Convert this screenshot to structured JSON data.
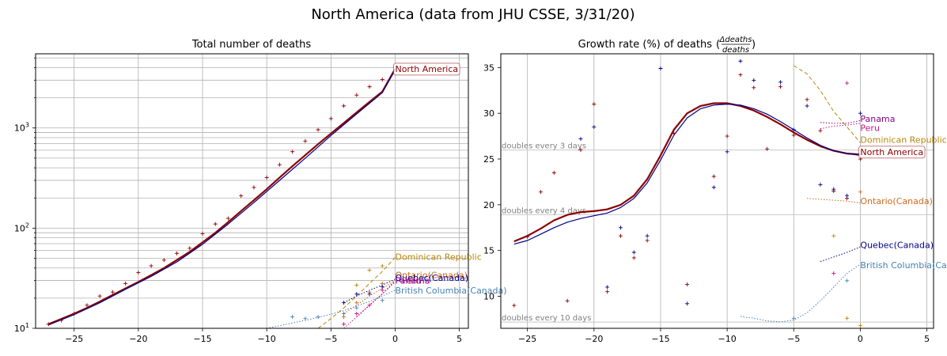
{
  "figure": {
    "suptitle": "North America (data from JHU CSSE, 3/31/20)"
  },
  "chart_data": [
    {
      "type": "line",
      "title": "Total number of deaths",
      "yscale": "log",
      "xlim": [
        -28,
        5.7
      ],
      "ylim": [
        10,
        5500
      ],
      "x_ticks": [
        -25,
        -20,
        -15,
        -10,
        -5,
        0,
        5
      ],
      "y_tick_labels": [
        {
          "value": 10,
          "label": "10^1"
        },
        {
          "value": 100,
          "label": "10^2"
        },
        {
          "value": 1000,
          "label": "10^3"
        }
      ],
      "series": [
        {
          "name": "North America",
          "color": "#8b0000",
          "style": "solid",
          "width": 2.2,
          "x": [
            -27,
            -26,
            -25,
            -24,
            -23,
            -22,
            -21,
            -20,
            -19,
            -18,
            -17,
            -16,
            -15,
            -14,
            -13,
            -12,
            -11,
            -10,
            -9,
            -8,
            -7,
            -6,
            -5,
            -4,
            -3,
            -2,
            -1,
            0
          ],
          "y": [
            11,
            12.4,
            14,
            16,
            18.5,
            21.5,
            25,
            29,
            34,
            40,
            48,
            58,
            72,
            90,
            115,
            148,
            190,
            245,
            320,
            415,
            535,
            690,
            880,
            1120,
            1430,
            1820,
            2300,
            3900
          ]
        },
        {
          "name": "North America fit",
          "color": "#00008b",
          "style": "solid",
          "width": 1.2,
          "x": [
            -27,
            -25,
            -23,
            -21,
            -19,
            -17,
            -15,
            -13,
            -11,
            -9,
            -7,
            -5,
            -3,
            -1,
            0
          ],
          "y": [
            10.8,
            13.7,
            18,
            24.5,
            33,
            46,
            69,
            110,
            180,
            300,
            500,
            840,
            1380,
            2250,
            3800
          ]
        },
        {
          "name": "Dominican Republic",
          "color": "#b8860b",
          "style": "dashed",
          "width": 1,
          "x": [
            -6,
            -5,
            -4,
            -3,
            -2,
            -1,
            0
          ],
          "y": [
            10,
            12.5,
            16,
            21,
            28,
            37,
            51
          ]
        },
        {
          "name": "Ontario(Canada)",
          "color": "#d2691e",
          "style": "dotted",
          "width": 1,
          "x": [
            -4,
            -3,
            -2,
            -1,
            0
          ],
          "y": [
            14,
            17,
            21,
            25,
            30
          ]
        },
        {
          "name": "Quebec(Canada)",
          "color": "#00008b",
          "style": "dotted",
          "width": 1,
          "x": [
            -4,
            -3,
            -2,
            -1,
            0
          ],
          "y": [
            18,
            21,
            24,
            27,
            31
          ]
        },
        {
          "name": "Panama",
          "color": "#8b008b",
          "style": "dotted",
          "width": 1,
          "x": [
            -3,
            -2,
            -1,
            0
          ],
          "y": [
            13,
            17,
            22,
            30
          ]
        },
        {
          "name": "Peru",
          "color": "#c71585",
          "style": "dotted",
          "width": 1,
          "x": [
            -4,
            -3,
            -2,
            -1,
            0
          ],
          "y": [
            10,
            13,
            17,
            22,
            29
          ]
        },
        {
          "name": "British Columbia(Canada)",
          "color": "#4682b4",
          "style": "dotted",
          "width": 1,
          "x": [
            -10,
            -8,
            -6,
            -4,
            -2,
            0
          ],
          "y": [
            10,
            11.3,
            12.8,
            15,
            18.5,
            24
          ]
        }
      ],
      "markers": [
        {
          "name": "North America",
          "color": "#8b0000",
          "x": [
            -27,
            -26,
            -25,
            -24,
            -23,
            -22,
            -21,
            -20,
            -19,
            -18,
            -17,
            -16,
            -15,
            -14,
            -13,
            -12,
            -11,
            -10,
            -9,
            -8,
            -7,
            -6,
            -5,
            -4,
            -3,
            -2,
            -1
          ],
          "y": [
            11,
            12,
            14,
            17,
            21,
            23,
            28,
            36,
            42,
            48,
            56,
            63,
            88,
            110,
            125,
            210,
            255,
            320,
            430,
            580,
            740,
            960,
            1240,
            1660,
            2130,
            2580,
            3040
          ]
        },
        {
          "name": "Dominican Republic",
          "color": "#b8860b",
          "x": [
            -3,
            -2,
            -1
          ],
          "y": [
            27,
            38,
            42
          ]
        },
        {
          "name": "Ontario(Canada)",
          "color": "#d2691e",
          "x": [
            -4,
            -3,
            -2,
            -1
          ],
          "y": [
            13,
            18,
            23,
            28
          ]
        },
        {
          "name": "Quebec(Canada)",
          "color": "#00008b",
          "x": [
            -4,
            -3,
            -2,
            -1
          ],
          "y": [
            18,
            22,
            22,
            26
          ]
        },
        {
          "name": "Peru",
          "color": "#c71585",
          "x": [
            -4,
            -3,
            -2,
            -1
          ],
          "y": [
            11,
            14,
            17,
            24
          ]
        },
        {
          "name": "British Columbia(Canada)",
          "color": "#4682b4",
          "x": [
            -8,
            -7,
            -6,
            -4,
            -3,
            -1
          ],
          "y": [
            13,
            12.5,
            13,
            14,
            16,
            19
          ]
        }
      ],
      "annotations": [
        {
          "text": "North America",
          "x": 0,
          "y": 3900,
          "color": "#8b0000",
          "boxed": true
        },
        {
          "text": "Dominican Republic",
          "x": 0,
          "y": 52,
          "color": "#b8860b"
        },
        {
          "text": "Ontario(Canada)",
          "x": 0,
          "y": 34,
          "color": "#d2691e"
        },
        {
          "text": "Quebec(Canada)",
          "x": 0,
          "y": 32,
          "color": "#00008b"
        },
        {
          "text": "Panama",
          "x": 0,
          "y": 30,
          "color": "#8b008b"
        },
        {
          "text": "Peru",
          "x": 0.5,
          "y": 30,
          "color": "#c71585"
        },
        {
          "text": "British Columbia(Canada)",
          "x": 0,
          "y": 24,
          "color": "#4682b4"
        }
      ]
    },
    {
      "type": "line",
      "title": "Growth rate (%) of deaths",
      "title_fraction": {
        "numerator": "Δdeaths",
        "denominator": "deaths"
      },
      "xlim": [
        -27,
        5.5
      ],
      "ylim": [
        6.5,
        36.5
      ],
      "x_ticks": [
        -25,
        -20,
        -15,
        -10,
        -5,
        0,
        5
      ],
      "y_ticks": [
        10,
        15,
        20,
        25,
        30,
        35
      ],
      "reference_lines": [
        {
          "label": "doubles every 3 days",
          "y": 25.99
        },
        {
          "label": "doubles every 4 days",
          "y": 18.92
        },
        {
          "label": "doubles every 10 days",
          "y": 7.18
        }
      ],
      "series": [
        {
          "name": "North America",
          "color": "#8b0000",
          "style": "solid",
          "width": 2.2,
          "x": [
            -26,
            -25,
            -24,
            -23,
            -22,
            -21,
            -20,
            -19,
            -18,
            -17,
            -16,
            -15,
            -14,
            -13,
            -12,
            -11,
            -10,
            -9,
            -8,
            -7,
            -6,
            -5,
            -4,
            -3,
            -2,
            -1,
            0
          ],
          "y": [
            16,
            16.6,
            17.4,
            18.3,
            18.9,
            19.2,
            19.3,
            19.5,
            20,
            21,
            22.8,
            25.4,
            28.2,
            30,
            30.8,
            31.1,
            31.1,
            30.8,
            30.3,
            29.6,
            28.8,
            27.9,
            27.1,
            26.4,
            25.9,
            25.6,
            25.5
          ]
        },
        {
          "name": "North America fit",
          "color": "#00008b",
          "style": "solid",
          "width": 1.2,
          "x": [
            -26,
            -25,
            -24,
            -23,
            -22,
            -21,
            -20,
            -19,
            -18,
            -17,
            -16,
            -15,
            -14,
            -13,
            -12,
            -11,
            -10,
            -9,
            -8,
            -7,
            -6,
            -5,
            -4,
            -3,
            -2,
            -1,
            0
          ],
          "y": [
            15.7,
            16.1,
            16.8,
            17.5,
            18.1,
            18.5,
            18.8,
            19.1,
            19.7,
            20.7,
            22.4,
            24.9,
            27.6,
            29.5,
            30.5,
            30.9,
            31,
            30.9,
            30.5,
            29.9,
            29.1,
            28.2,
            27.3,
            26.5,
            25.9,
            25.6,
            25.4
          ]
        },
        {
          "name": "Dominican Republic",
          "color": "#b8860b",
          "style": "dashed",
          "width": 1,
          "x": [
            -5,
            -4,
            -3,
            -2,
            -1,
            0
          ],
          "y": [
            35.2,
            34.3,
            32.5,
            30.2,
            28.5,
            26.8
          ]
        },
        {
          "name": "Panama",
          "color": "#8b008b",
          "style": "dotted",
          "width": 1,
          "x": [
            -3,
            -2,
            -1,
            0
          ],
          "y": [
            29,
            28.9,
            28.9,
            29.2
          ]
        },
        {
          "name": "Peru",
          "color": "#c71585",
          "style": "dotted",
          "width": 1,
          "x": [
            -3,
            -2,
            -1,
            0
          ],
          "y": [
            28.3,
            28.6,
            28.7,
            28.9
          ]
        },
        {
          "name": "Ontario(Canada)",
          "color": "#d2691e",
          "style": "dotted",
          "width": 1,
          "x": [
            -4,
            -3,
            -2,
            -1,
            0
          ],
          "y": [
            20.7,
            20.6,
            20.5,
            20.4,
            20.2
          ]
        },
        {
          "name": "Quebec(Canada)",
          "color": "#00008b",
          "style": "dotted",
          "width": 1,
          "x": [
            -3,
            -2,
            -1,
            0
          ],
          "y": [
            13.8,
            14.3,
            14.8,
            15.4
          ]
        },
        {
          "name": "British Columbia(Canada)",
          "color": "#4682b4",
          "style": "dotted",
          "width": 1,
          "x": [
            -9,
            -8,
            -7,
            -6,
            -5,
            -4,
            -3,
            -2,
            -1,
            0
          ],
          "y": [
            7.8,
            7.6,
            7.3,
            7.2,
            7.4,
            8.2,
            9.5,
            11,
            12.5,
            13.5
          ]
        }
      ],
      "markers": [
        {
          "name": "North America",
          "color": "#8b0000",
          "x": [
            -26,
            -25,
            -24,
            -23,
            -22,
            -21,
            -20,
            -19,
            -18,
            -17,
            -16,
            -14,
            -13,
            -11,
            -10,
            -9,
            -8,
            -7,
            -6,
            -5,
            -4,
            -3,
            -2,
            -1,
            0
          ],
          "y": [
            9,
            16.5,
            21.4,
            23.5,
            9.5,
            26,
            31,
            10.5,
            16.6,
            14.2,
            16.1,
            27.8,
            11.3,
            23.1,
            27.5,
            34.2,
            32.8,
            26.1,
            32.9,
            27.6,
            31.5,
            28.1,
            21.5,
            20.7,
            25
          ]
        },
        {
          "name": "North America fit",
          "color": "#00008b",
          "x": [
            -21,
            -20,
            -19,
            -18,
            -17,
            -16,
            -15,
            -13,
            -11,
            -10,
            -9,
            -8,
            -6,
            -5,
            -4,
            -3,
            -2,
            -1,
            0
          ],
          "y": [
            27.2,
            28.5,
            11,
            17.5,
            14.8,
            16.6,
            34.9,
            9.2,
            21.9,
            25.8,
            35.7,
            33.6,
            33.4,
            28.2,
            30.8,
            22.2,
            21.7,
            21,
            30
          ]
        },
        {
          "name": "Dominican Republic",
          "color": "#b8860b",
          "x": [
            -2,
            -1,
            0
          ],
          "y": [
            16.6,
            7.6,
            6.8
          ]
        },
        {
          "name": "Peru",
          "color": "#c71585",
          "x": [
            -2,
            -1
          ],
          "y": [
            12.5,
            33.3
          ]
        },
        {
          "name": "Ontario(Canada)",
          "color": "#d2691e",
          "x": [
            0
          ],
          "y": [
            21.4
          ]
        },
        {
          "name": "British Columbia(Canada)",
          "color": "#4682b4",
          "x": [
            -5,
            -1
          ],
          "y": [
            7.6,
            11.7
          ]
        }
      ],
      "annotations": [
        {
          "text": "Panama",
          "x": 0,
          "y": 29.4,
          "color": "#8b008b"
        },
        {
          "text": "Peru",
          "x": 0,
          "y": 28.4,
          "color": "#c71585"
        },
        {
          "text": "Dominican Republic",
          "x": 0,
          "y": 27.1,
          "color": "#b8860b"
        },
        {
          "text": "North America",
          "x": 0,
          "y": 25.8,
          "color": "#8b0000",
          "boxed": true
        },
        {
          "text": "Ontario(Canada)",
          "x": 0,
          "y": 20.4,
          "color": "#d2691e"
        },
        {
          "text": "Quebec(Canada)",
          "x": 0,
          "y": 15.6,
          "color": "#00008b"
        },
        {
          "text": "British Columbia(Canada)",
          "x": 0,
          "y": 13.4,
          "color": "#4682b4"
        }
      ]
    }
  ]
}
